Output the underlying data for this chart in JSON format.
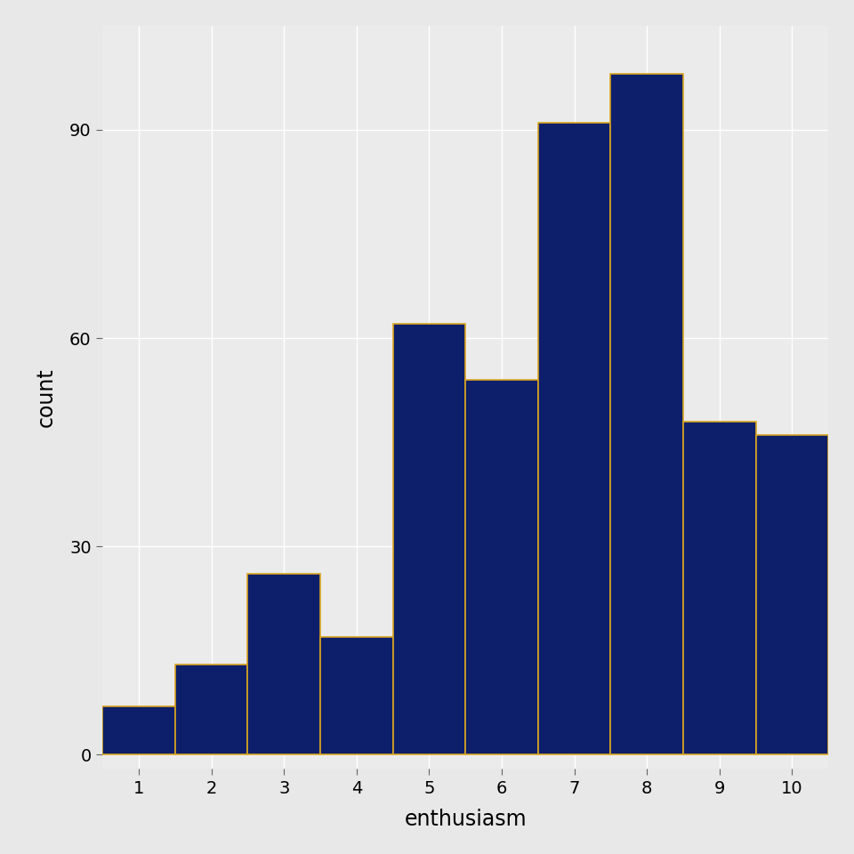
{
  "categories": [
    1,
    2,
    3,
    4,
    5,
    6,
    7,
    8,
    9,
    10
  ],
  "counts": [
    7,
    13,
    26,
    17,
    62,
    54,
    91,
    98,
    48,
    46
  ],
  "bar_color": "#0d1f6b",
  "edge_color": "#DAA520",
  "xlabel": "enthusiasm",
  "ylabel": "count",
  "xlim": [
    0.5,
    10.5
  ],
  "ylim": [
    -2,
    105
  ],
  "yticks": [
    0,
    30,
    60,
    90
  ],
  "xticks": [
    1,
    2,
    3,
    4,
    5,
    6,
    7,
    8,
    9,
    10
  ],
  "panel_background": "#EBEBEB",
  "fig_background": "#E8E8E8",
  "grid_color": "#ffffff",
  "bar_width": 1.0,
  "label_fontsize": 17,
  "tick_fontsize": 14
}
